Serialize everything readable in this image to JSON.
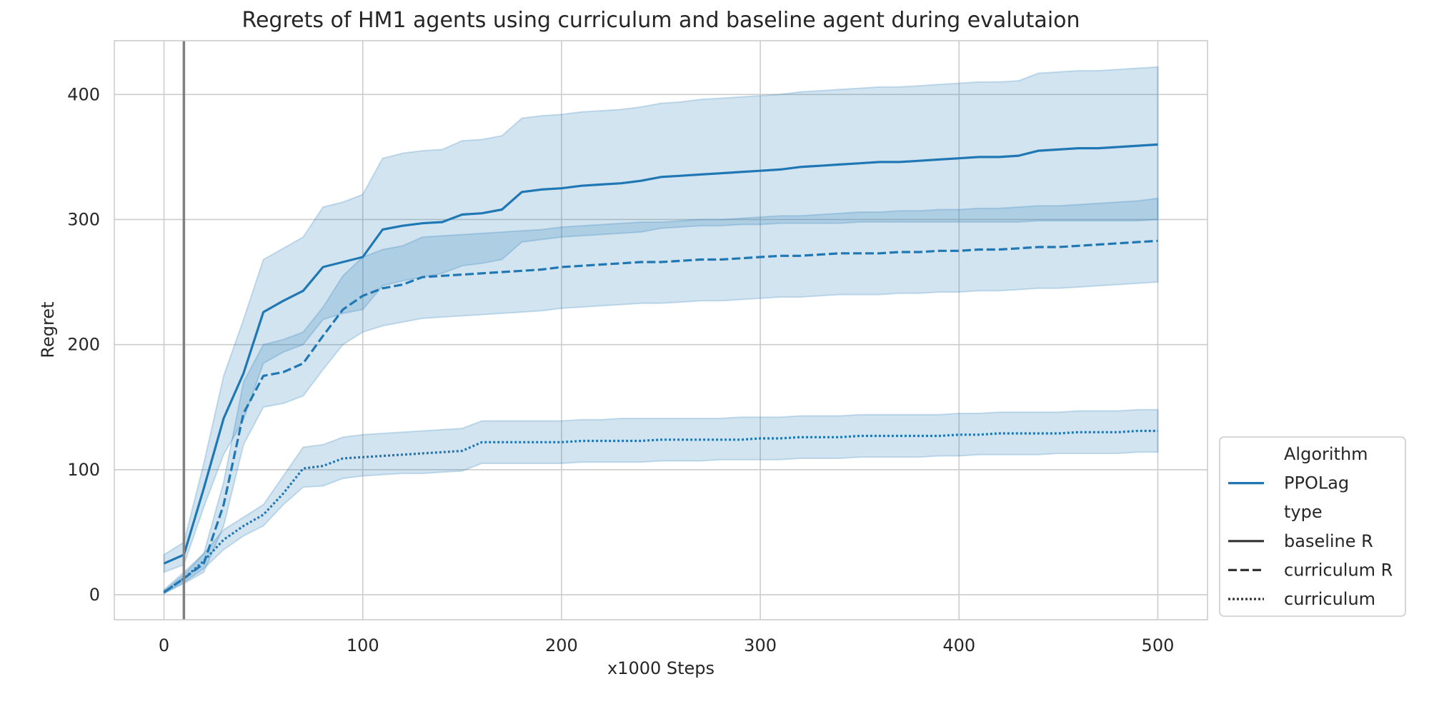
{
  "chart_data": {
    "type": "line",
    "title": "Regrets of HM1 agents using curriculum and baseline agent during evalutaion",
    "xlabel": "x1000 Steps",
    "ylabel": "Regret",
    "xlim": [
      -25,
      525
    ],
    "ylim": [
      -20,
      443
    ],
    "x_ticks": [
      0,
      100,
      200,
      300,
      400,
      500
    ],
    "y_ticks": [
      0,
      100,
      200,
      300,
      400
    ],
    "grid": true,
    "vline_x": 10,
    "vline_color": "#808080",
    "series_color": "#1f77b4",
    "band_color": "#1f77b4",
    "x": [
      0,
      10,
      20,
      30,
      40,
      50,
      60,
      70,
      80,
      90,
      100,
      110,
      120,
      130,
      140,
      150,
      160,
      170,
      180,
      190,
      200,
      210,
      220,
      230,
      240,
      250,
      260,
      270,
      280,
      290,
      300,
      310,
      320,
      330,
      340,
      350,
      360,
      370,
      380,
      390,
      400,
      410,
      420,
      430,
      440,
      450,
      460,
      470,
      480,
      490,
      500
    ],
    "series": [
      {
        "label": "baseline R",
        "dash": "solid",
        "values": [
          25,
          32,
          85,
          141,
          177,
          226,
          235,
          243,
          262,
          266,
          270,
          292,
          295,
          297,
          298,
          304,
          305,
          308,
          322,
          324,
          325,
          327,
          328,
          329,
          331,
          334,
          335,
          336,
          337,
          338,
          339,
          340,
          342,
          343,
          344,
          345,
          346,
          346,
          347,
          348,
          349,
          350,
          350,
          351,
          355,
          356,
          357,
          357,
          358,
          359,
          360
        ],
        "upper": [
          32,
          42,
          105,
          175,
          220,
          268,
          277,
          286,
          310,
          314,
          320,
          349,
          353,
          355,
          356,
          363,
          364,
          367,
          381,
          383,
          384,
          386,
          387,
          388,
          390,
          393,
          394,
          396,
          397,
          398,
          399,
          400,
          402,
          403,
          404,
          405,
          406,
          406,
          407,
          408,
          409,
          410,
          410,
          411,
          417,
          418,
          419,
          419,
          420,
          421,
          422
        ],
        "lower": [
          18,
          24,
          70,
          112,
          140,
          185,
          194,
          200,
          220,
          225,
          228,
          247,
          251,
          254,
          257,
          263,
          265,
          268,
          282,
          284,
          286,
          287,
          288,
          289,
          290,
          293,
          294,
          295,
          295,
          296,
          296,
          297,
          297,
          297,
          297,
          298,
          298,
          298,
          298,
          298,
          298,
          298,
          298,
          298,
          299,
          299,
          299,
          299,
          299,
          299,
          300
        ]
      },
      {
        "label": "curriculum R",
        "dash": "dashed",
        "values": [
          2,
          13,
          25,
          72,
          145,
          175,
          178,
          185,
          207,
          228,
          239,
          245,
          248,
          254,
          255,
          256,
          257,
          258,
          259,
          260,
          262,
          263,
          264,
          265,
          266,
          266,
          267,
          268,
          268,
          269,
          270,
          271,
          271,
          272,
          273,
          273,
          273,
          274,
          274,
          275,
          275,
          276,
          276,
          277,
          278,
          278,
          279,
          280,
          281,
          282,
          283
        ],
        "upper": [
          4,
          18,
          33,
          90,
          170,
          200,
          204,
          210,
          230,
          255,
          270,
          276,
          279,
          286,
          287,
          288,
          289,
          290,
          291,
          292,
          294,
          295,
          296,
          297,
          298,
          298,
          299,
          300,
          300,
          301,
          302,
          303,
          303,
          304,
          305,
          306,
          306,
          307,
          307,
          308,
          308,
          309,
          309,
          310,
          311,
          311,
          312,
          313,
          314,
          315,
          317
        ],
        "lower": [
          1,
          9,
          18,
          55,
          120,
          150,
          153,
          159,
          180,
          200,
          210,
          215,
          218,
          221,
          222,
          223,
          224,
          225,
          226,
          227,
          229,
          230,
          231,
          232,
          233,
          233,
          234,
          235,
          235,
          236,
          237,
          238,
          238,
          239,
          240,
          240,
          240,
          241,
          241,
          242,
          242,
          243,
          243,
          244,
          245,
          245,
          246,
          247,
          248,
          249,
          250
        ]
      },
      {
        "label": "curriculum",
        "dash": "dotted",
        "values": [
          2,
          13,
          27,
          44,
          55,
          64,
          81,
          101,
          103,
          109,
          110,
          111,
          112,
          113,
          114,
          115,
          122,
          122,
          122,
          122,
          122,
          123,
          123,
          123,
          123,
          124,
          124,
          124,
          124,
          124,
          125,
          125,
          126,
          126,
          126,
          127,
          127,
          127,
          127,
          127,
          128,
          128,
          129,
          129,
          129,
          129,
          130,
          130,
          130,
          131,
          131
        ],
        "upper": [
          3,
          16,
          33,
          52,
          62,
          72,
          95,
          118,
          120,
          126,
          128,
          129,
          130,
          131,
          132,
          133,
          139,
          139,
          139,
          139,
          139,
          140,
          140,
          141,
          141,
          141,
          141,
          141,
          141,
          142,
          142,
          142,
          143,
          143,
          143,
          144,
          144,
          144,
          144,
          144,
          145,
          145,
          146,
          146,
          146,
          146,
          147,
          147,
          147,
          148,
          148
        ],
        "lower": [
          1,
          10,
          21,
          36,
          47,
          55,
          72,
          86,
          87,
          93,
          95,
          96,
          97,
          97,
          98,
          99,
          105,
          105,
          105,
          105,
          105,
          106,
          106,
          106,
          106,
          107,
          107,
          107,
          108,
          108,
          108,
          108,
          109,
          109,
          109,
          110,
          110,
          110,
          110,
          111,
          111,
          112,
          112,
          112,
          112,
          113,
          113,
          113,
          113,
          114,
          114
        ]
      }
    ],
    "legend": {
      "placement": "lower-right-outside",
      "entries": [
        {
          "label": "Algorithm",
          "kind": "header"
        },
        {
          "label": "PPOLag",
          "kind": "line",
          "dash": "solid",
          "color": "#1f77b4"
        },
        {
          "label": "type",
          "kind": "header"
        },
        {
          "label": "baseline R",
          "kind": "line",
          "dash": "solid",
          "color": "#333333"
        },
        {
          "label": "curriculum R",
          "kind": "line",
          "dash": "dashed",
          "color": "#333333"
        },
        {
          "label": "curriculum",
          "kind": "line",
          "dash": "dotted",
          "color": "#333333"
        }
      ]
    }
  }
}
